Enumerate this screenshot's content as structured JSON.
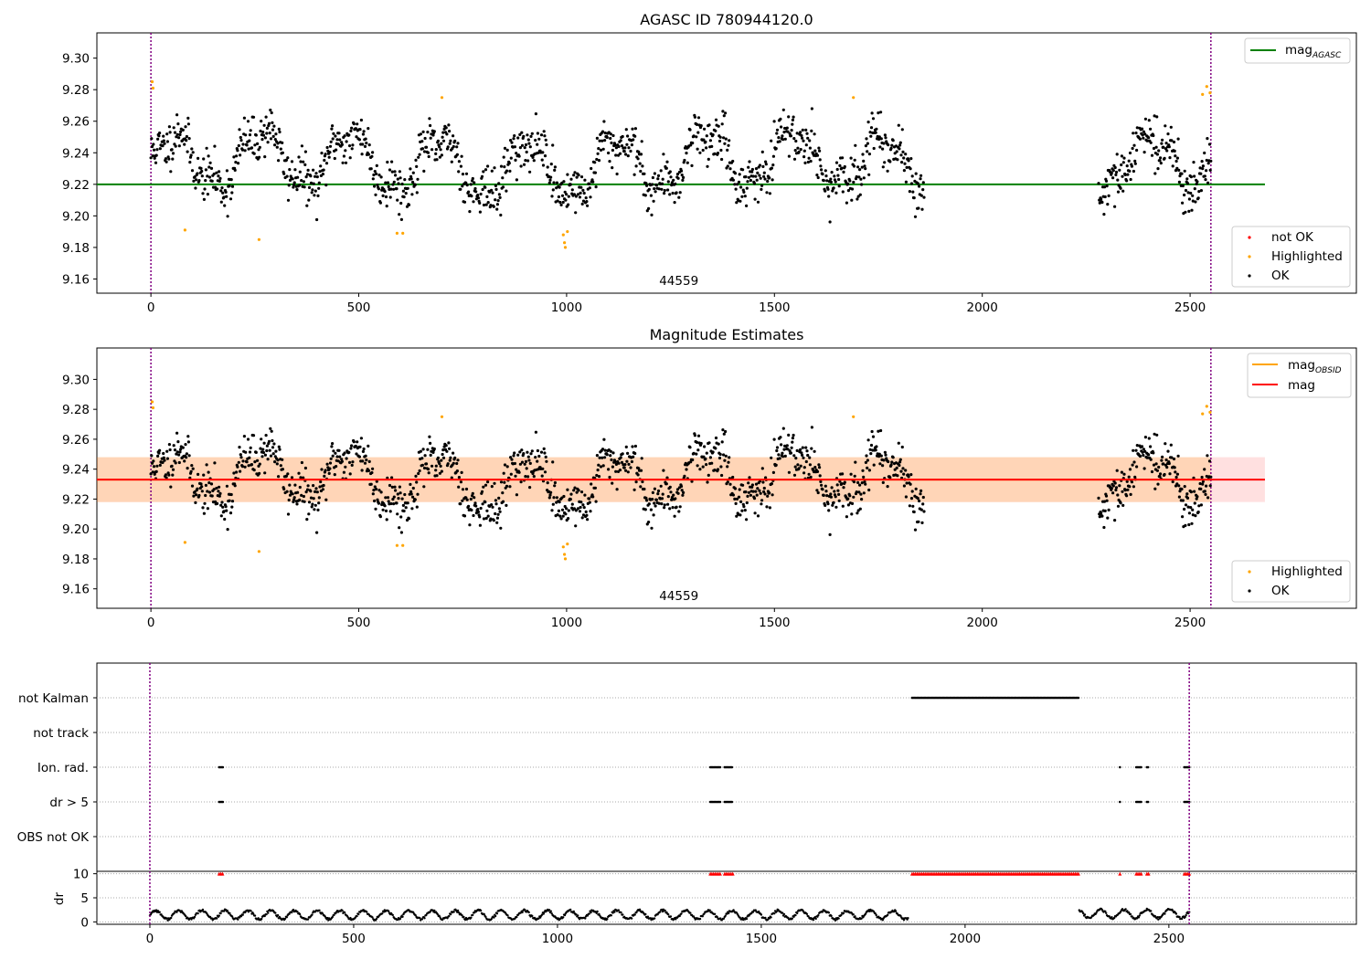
{
  "chart_data": [
    {
      "type": "scatter",
      "title": "AGASC ID 780944120.0",
      "xlim": [
        -130,
        2900
      ],
      "ylim": [
        9.151,
        9.316
      ],
      "x_ticks": [
        0,
        500,
        1000,
        1500,
        2000,
        2500
      ],
      "y_ticks": [
        "9.16",
        "9.18",
        "9.20",
        "9.22",
        "9.24",
        "9.26",
        "9.28",
        "9.30"
      ],
      "obsid_label": "44559",
      "obsid_label_x": 1270,
      "obs_boundaries_x": [
        0,
        2550
      ],
      "mag_agasc": 9.22,
      "mag_agasc_xrange": [
        -130,
        2680
      ],
      "series": [
        {
          "name": "not OK",
          "color": "#ff0000",
          "points": []
        },
        {
          "name": "Highlighted",
          "color": "#ffa500",
          "points": [
            [
              3,
              9.285
            ],
            [
              5,
              9.281
            ],
            [
              82,
              9.191
            ],
            [
              260,
              9.185
            ],
            [
              592,
              9.189
            ],
            [
              606,
              9.189
            ],
            [
              700,
              9.275
            ],
            [
              992,
              9.188
            ],
            [
              995,
              9.183
            ],
            [
              997,
              9.18
            ],
            [
              1002,
              9.19
            ],
            [
              1690,
              9.275
            ],
            [
              2530,
              9.277
            ],
            [
              2540,
              9.282
            ],
            [
              2548,
              9.278
            ]
          ]
        },
        {
          "name": "OK",
          "color": "#000000",
          "segments": [
            {
              "x0": 0,
              "x1": 1860,
              "n": 1250,
              "seed": 11
            },
            {
              "x0": 2280,
              "x1": 2550,
              "n": 190,
              "seed": 29
            }
          ]
        }
      ],
      "legend_upper": [
        {
          "label_main": "mag",
          "label_sub": "AGASC",
          "color": "#008000"
        }
      ],
      "legend_lower": [
        "not OK",
        "Highlighted",
        "OK"
      ]
    },
    {
      "type": "scatter",
      "title": "Magnitude Estimates",
      "xlim": [
        -130,
        2900
      ],
      "ylim": [
        9.147,
        9.321
      ],
      "x_ticks": [
        0,
        500,
        1000,
        1500,
        2000,
        2500
      ],
      "y_ticks": [
        "9.16",
        "9.18",
        "9.20",
        "9.22",
        "9.24",
        "9.26",
        "9.28",
        "9.30"
      ],
      "obsid_label": "44559",
      "obsid_label_x": 1270,
      "obs_boundaries_x": [
        0,
        2550
      ],
      "mag": 9.233,
      "mag_band": [
        9.218,
        9.248
      ],
      "mag_obsid": 9.233,
      "mag_obsid_band": [
        9.218,
        9.248
      ],
      "band_xrange": [
        -130,
        2680
      ],
      "band_obsid_xrange": [
        -130,
        2550
      ],
      "series": [
        {
          "name": "Highlighted",
          "color": "#ffa500",
          "points": [
            [
              3,
              9.285
            ],
            [
              5,
              9.281
            ],
            [
              82,
              9.191
            ],
            [
              260,
              9.185
            ],
            [
              592,
              9.189
            ],
            [
              606,
              9.189
            ],
            [
              700,
              9.275
            ],
            [
              992,
              9.188
            ],
            [
              995,
              9.183
            ],
            [
              997,
              9.18
            ],
            [
              1002,
              9.19
            ],
            [
              1690,
              9.275
            ],
            [
              2530,
              9.277
            ],
            [
              2540,
              9.282
            ],
            [
              2548,
              9.278
            ]
          ]
        },
        {
          "name": "OK",
          "color": "#000000",
          "segments": [
            {
              "x0": 0,
              "x1": 1860,
              "n": 1250,
              "seed": 11
            },
            {
              "x0": 2280,
              "x1": 2550,
              "n": 190,
              "seed": 29
            }
          ]
        }
      ],
      "legend_upper": [
        {
          "label_main": "mag",
          "label_sub": "OBSID",
          "color": "#ffa500"
        },
        {
          "label_main": "mag",
          "label_sub": "",
          "color": "#ff0000"
        }
      ],
      "legend_lower": [
        "Highlighted",
        "OK"
      ]
    },
    {
      "type": "scatter",
      "title": "",
      "xlim": [
        -130,
        2960
      ],
      "flag_rows": [
        "not Kalman",
        "not track",
        "Ion. rad.",
        "dr > 5",
        "OBS not OK"
      ],
      "flags": {
        "not Kalman": [
          [
            1870,
            2280
          ]
        ],
        "not track": [],
        "Ion. rad.": [
          [
            170,
            180
          ],
          [
            1375,
            1400
          ],
          [
            1410,
            1430
          ],
          [
            2380,
            2382
          ],
          [
            2420,
            2432
          ],
          [
            2446,
            2450
          ],
          [
            2538,
            2550
          ]
        ],
        "dr > 5": [
          [
            170,
            180
          ],
          [
            1375,
            1400
          ],
          [
            1410,
            1430
          ],
          [
            2380,
            2382
          ],
          [
            2420,
            2432
          ],
          [
            2446,
            2450
          ],
          [
            2538,
            2550
          ]
        ],
        "OBS not OK": []
      }
    },
    {
      "type": "line",
      "title": "",
      "ylabel": "dr",
      "xlim": [
        -130,
        2960
      ],
      "ylim": [
        -0.5,
        10.5
      ],
      "x_ticks": [
        0,
        500,
        1000,
        1500,
        2000,
        2500
      ],
      "y_ticks": [
        "0",
        "5",
        "10"
      ],
      "dr_segments": [
        [
          0,
          1860,
          1.2
        ],
        [
          2280,
          2550,
          1.4
        ]
      ],
      "dr_clipped": [
        [
          170,
          180
        ],
        [
          1375,
          1400
        ],
        [
          1410,
          1430
        ],
        [
          1870,
          2280
        ],
        [
          2380,
          2382
        ],
        [
          2420,
          2432
        ],
        [
          2446,
          2450
        ],
        [
          2538,
          2550
        ]
      ],
      "dr_clip_value": 10
    }
  ]
}
